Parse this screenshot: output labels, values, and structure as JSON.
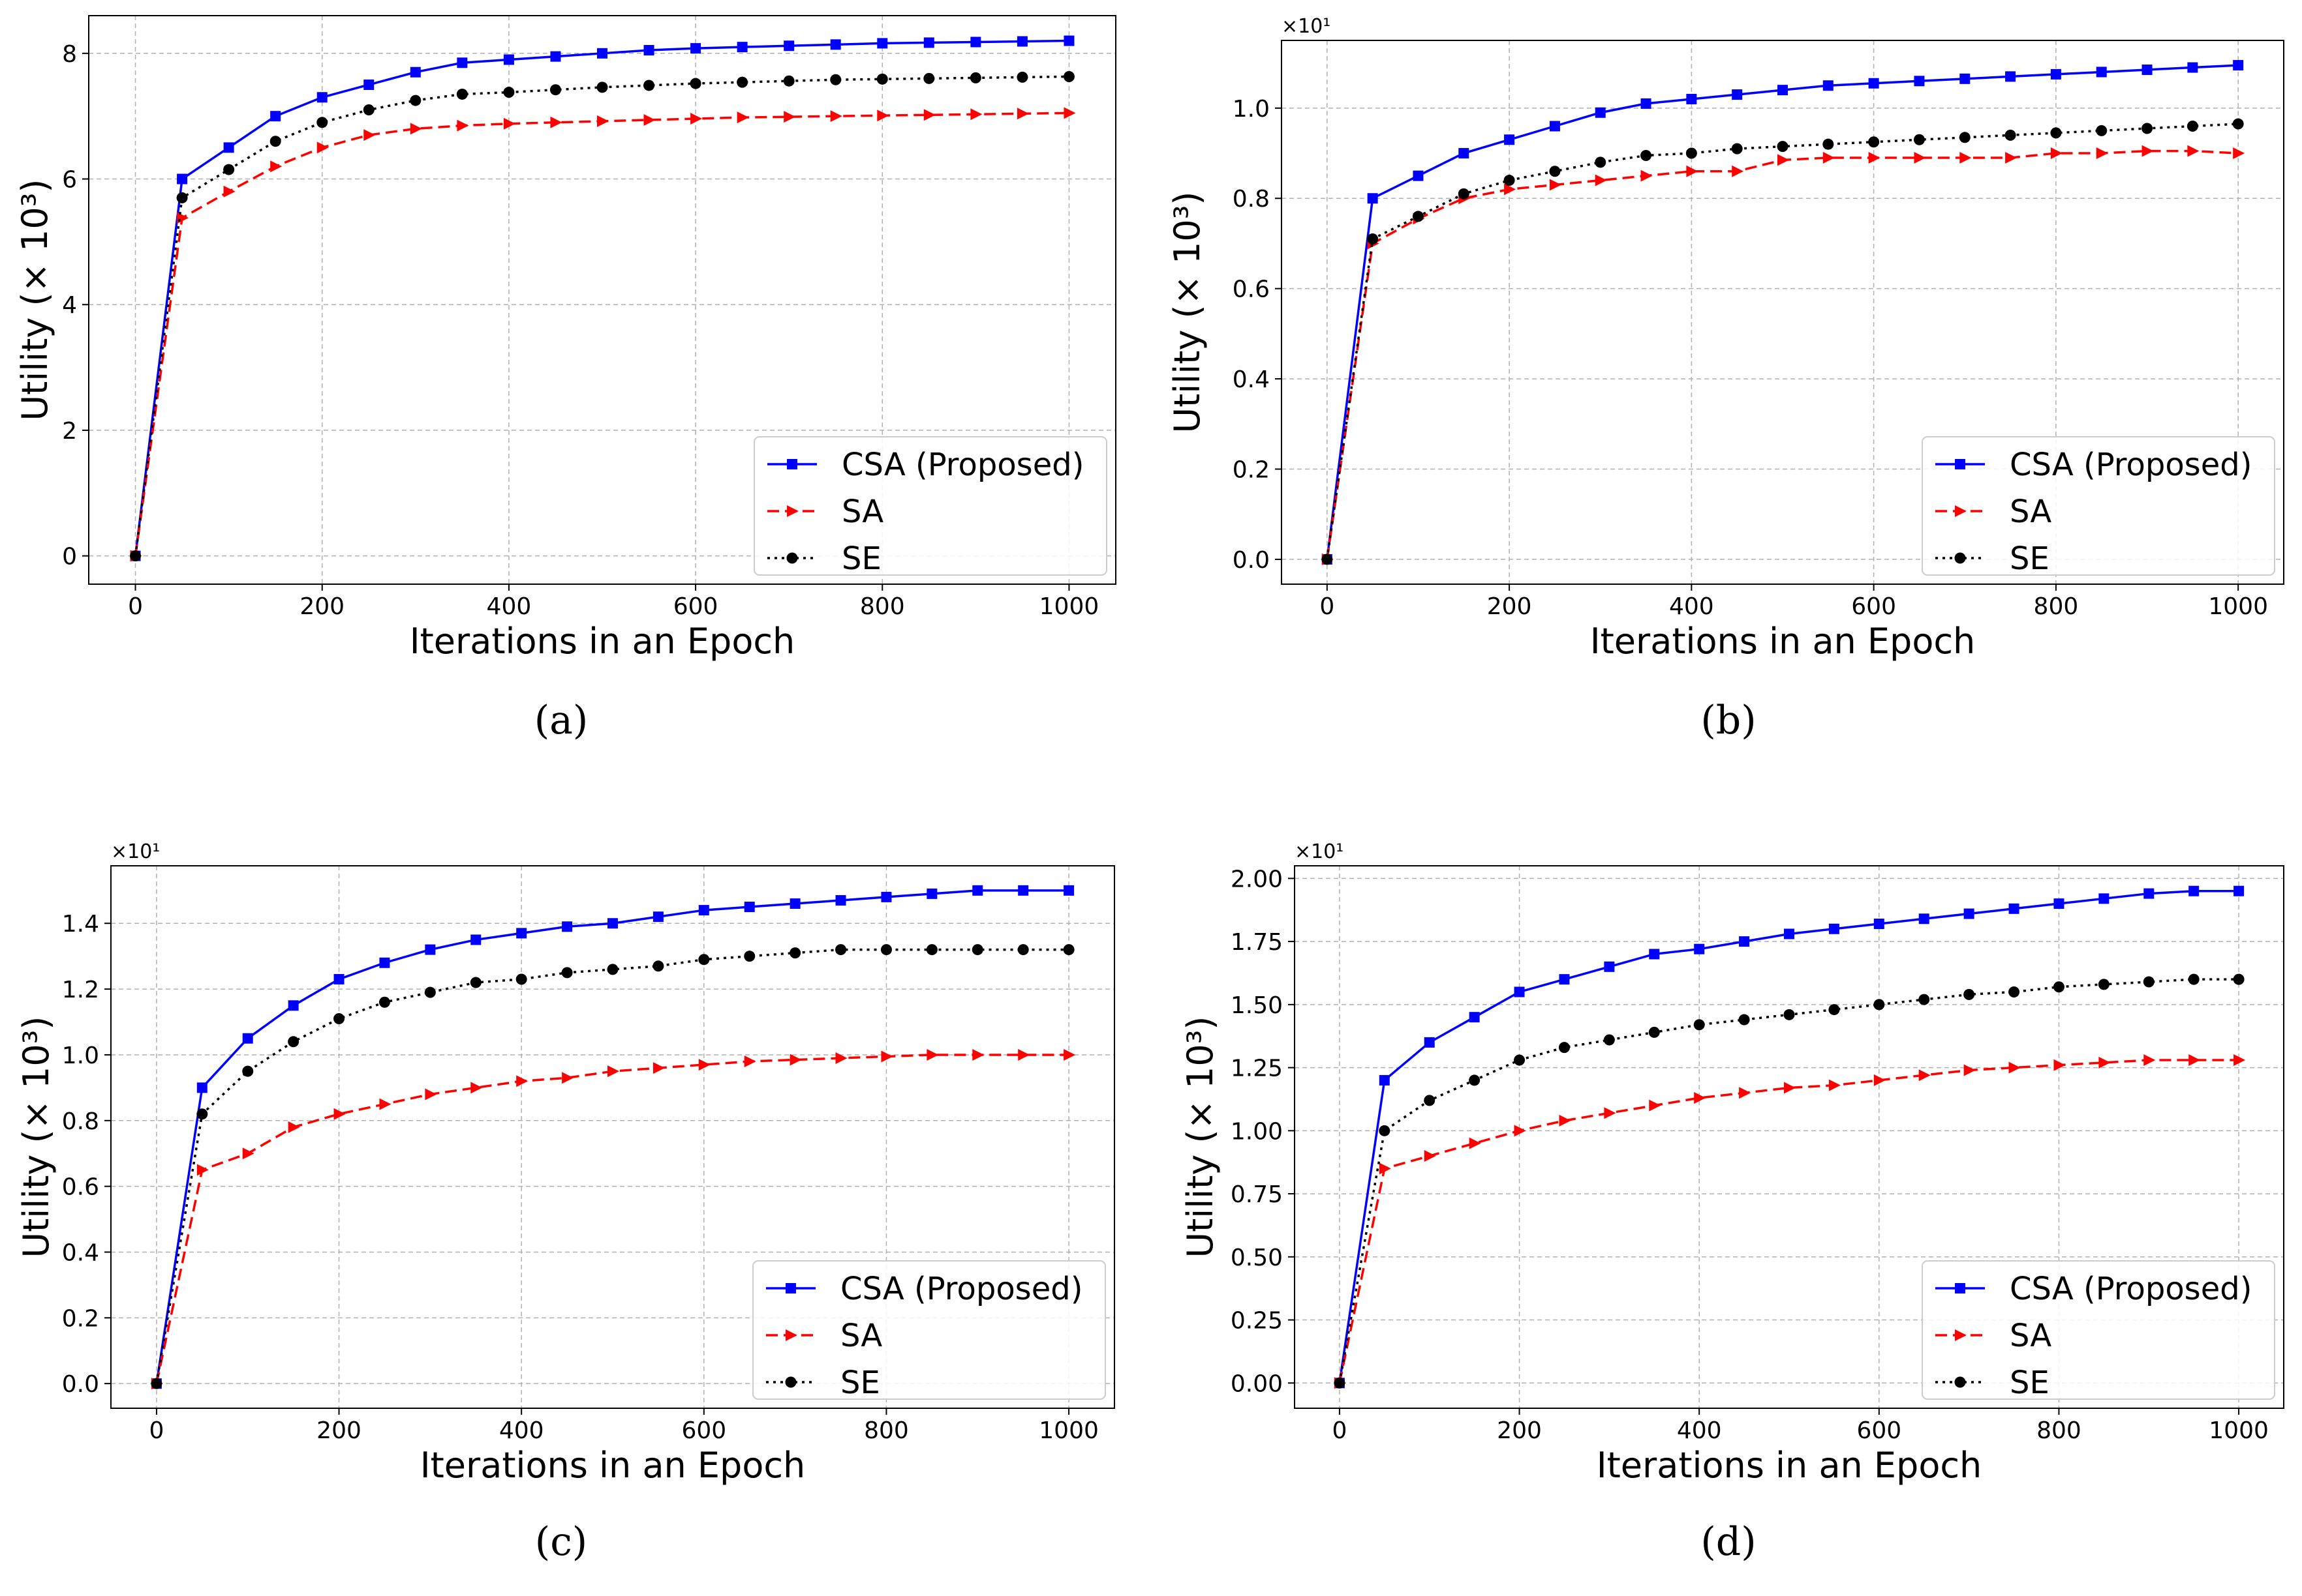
{
  "figure": {
    "captions": [
      "(a)",
      "(b)",
      "(c)",
      "(d)"
    ]
  },
  "colors": {
    "csa": "#0000ff",
    "sa": "#ff0000",
    "se": "#000000",
    "grid": "#b0b0b0"
  },
  "chart_data": [
    {
      "type": "line",
      "xlabel": "Iterations in an Epoch",
      "ylabel": "Utility (× 10³)",
      "offset_text": "",
      "xlim": [
        -50,
        1050
      ],
      "ylim": [
        -0.45,
        8.6
      ],
      "xticks": [
        0,
        200,
        400,
        600,
        800,
        1000
      ],
      "xtick_labels": [
        "0",
        "200",
        "400",
        "600",
        "800",
        "1000"
      ],
      "yticks": [
        0,
        2,
        4,
        6,
        8
      ],
      "ytick_labels": [
        "0",
        "2",
        "4",
        "6",
        "8"
      ],
      "grid": true,
      "legend": "lower right",
      "x": [
        0,
        50,
        100,
        150,
        200,
        250,
        300,
        350,
        400,
        450,
        500,
        550,
        600,
        650,
        700,
        750,
        800,
        850,
        900,
        950,
        1000
      ],
      "series": [
        {
          "name": "CSA (Proposed)",
          "marker": "square",
          "dash": "solid",
          "values": [
            0,
            6.0,
            6.5,
            7.0,
            7.3,
            7.5,
            7.7,
            7.85,
            7.9,
            7.95,
            8.0,
            8.05,
            8.08,
            8.1,
            8.12,
            8.14,
            8.16,
            8.17,
            8.18,
            8.19,
            8.2
          ]
        },
        {
          "name": "SA",
          "marker": "triangle-right",
          "dash": "dashed",
          "values": [
            0,
            5.38,
            5.8,
            6.2,
            6.5,
            6.7,
            6.8,
            6.85,
            6.88,
            6.9,
            6.92,
            6.94,
            6.96,
            6.98,
            6.99,
            7.0,
            7.01,
            7.02,
            7.03,
            7.04,
            7.05
          ]
        },
        {
          "name": "SE",
          "marker": "circle",
          "dash": "dotted",
          "values": [
            0,
            5.7,
            6.15,
            6.6,
            6.9,
            7.1,
            7.25,
            7.35,
            7.38,
            7.42,
            7.46,
            7.49,
            7.52,
            7.54,
            7.56,
            7.58,
            7.59,
            7.6,
            7.61,
            7.62,
            7.63
          ]
        }
      ]
    },
    {
      "type": "line",
      "xlabel": "Iterations in an Epoch",
      "ylabel": "Utility (× 10³)",
      "offset_text": "×10¹",
      "xlim": [
        -50,
        1050
      ],
      "ylim": [
        -0.055,
        1.15
      ],
      "xticks": [
        0,
        200,
        400,
        600,
        800,
        1000
      ],
      "xtick_labels": [
        "0",
        "200",
        "400",
        "600",
        "800",
        "1000"
      ],
      "yticks": [
        0,
        0.2,
        0.4,
        0.6,
        0.8,
        1.0
      ],
      "ytick_labels": [
        "0.0",
        "0.2",
        "0.4",
        "0.6",
        "0.8",
        "1.0"
      ],
      "grid": true,
      "legend": "lower right",
      "x": [
        0,
        50,
        100,
        150,
        200,
        250,
        300,
        350,
        400,
        450,
        500,
        550,
        600,
        650,
        700,
        750,
        800,
        850,
        900,
        950,
        1000
      ],
      "series": [
        {
          "name": "CSA (Proposed)",
          "marker": "square",
          "dash": "solid",
          "values": [
            0,
            0.8,
            0.85,
            0.9,
            0.93,
            0.96,
            0.99,
            1.01,
            1.02,
            1.03,
            1.04,
            1.05,
            1.055,
            1.06,
            1.065,
            1.07,
            1.075,
            1.08,
            1.085,
            1.09,
            1.095
          ]
        },
        {
          "name": "SA",
          "marker": "triangle-right",
          "dash": "dashed",
          "values": [
            0,
            0.7,
            0.755,
            0.8,
            0.82,
            0.83,
            0.84,
            0.85,
            0.86,
            0.86,
            0.885,
            0.89,
            0.89,
            0.89,
            0.89,
            0.89,
            0.9,
            0.9,
            0.905,
            0.905,
            0.9
          ]
        },
        {
          "name": "SE",
          "marker": "circle",
          "dash": "dotted",
          "values": [
            0,
            0.71,
            0.76,
            0.81,
            0.84,
            0.86,
            0.88,
            0.895,
            0.9,
            0.91,
            0.915,
            0.92,
            0.925,
            0.93,
            0.935,
            0.94,
            0.945,
            0.95,
            0.955,
            0.96,
            0.965
          ]
        }
      ]
    },
    {
      "type": "line",
      "xlabel": "Iterations in an Epoch",
      "ylabel": "Utility (× 10³)",
      "offset_text": "×10¹",
      "xlim": [
        -50,
        1050
      ],
      "ylim": [
        -0.075,
        1.575
      ],
      "xticks": [
        0,
        200,
        400,
        600,
        800,
        1000
      ],
      "xtick_labels": [
        "0",
        "200",
        "400",
        "600",
        "800",
        "1000"
      ],
      "yticks": [
        0,
        0.2,
        0.4,
        0.6,
        0.8,
        1.0,
        1.2,
        1.4
      ],
      "ytick_labels": [
        "0.0",
        "0.2",
        "0.4",
        "0.6",
        "0.8",
        "1.0",
        "1.2",
        "1.4"
      ],
      "grid": true,
      "legend": "lower right",
      "x": [
        0,
        50,
        100,
        150,
        200,
        250,
        300,
        350,
        400,
        450,
        500,
        550,
        600,
        650,
        700,
        750,
        800,
        850,
        900,
        950,
        1000
      ],
      "series": [
        {
          "name": "CSA (Proposed)",
          "marker": "square",
          "dash": "solid",
          "values": [
            0,
            0.9,
            1.05,
            1.15,
            1.23,
            1.28,
            1.32,
            1.35,
            1.37,
            1.39,
            1.4,
            1.42,
            1.44,
            1.45,
            1.46,
            1.47,
            1.48,
            1.49,
            1.5,
            1.5,
            1.5
          ]
        },
        {
          "name": "SA",
          "marker": "triangle-right",
          "dash": "dashed",
          "values": [
            0,
            0.65,
            0.7,
            0.78,
            0.82,
            0.85,
            0.88,
            0.9,
            0.92,
            0.93,
            0.95,
            0.96,
            0.97,
            0.98,
            0.985,
            0.99,
            0.995,
            1.0,
            1.0,
            1.0,
            1.0
          ]
        },
        {
          "name": "SE",
          "marker": "circle",
          "dash": "dotted",
          "values": [
            0,
            0.82,
            0.95,
            1.04,
            1.11,
            1.16,
            1.19,
            1.22,
            1.23,
            1.25,
            1.26,
            1.27,
            1.29,
            1.3,
            1.31,
            1.32,
            1.32,
            1.32,
            1.32,
            1.32,
            1.32
          ]
        }
      ]
    },
    {
      "type": "line",
      "xlabel": "Iterations in an Epoch",
      "ylabel": "Utility (× 10³)",
      "offset_text": "×10¹",
      "xlim": [
        -50,
        1050
      ],
      "ylim": [
        -0.1,
        2.05
      ],
      "xticks": [
        0,
        200,
        400,
        600,
        800,
        1000
      ],
      "xtick_labels": [
        "0",
        "200",
        "400",
        "600",
        "800",
        "1000"
      ],
      "yticks": [
        0,
        0.25,
        0.5,
        0.75,
        1.0,
        1.25,
        1.5,
        1.75,
        2.0
      ],
      "ytick_labels": [
        "0.00",
        "0.25",
        "0.50",
        "0.75",
        "1.00",
        "1.25",
        "1.50",
        "1.75",
        "2.00"
      ],
      "grid": true,
      "legend": "lower right",
      "x": [
        0,
        50,
        100,
        150,
        200,
        250,
        300,
        350,
        400,
        450,
        500,
        550,
        600,
        650,
        700,
        750,
        800,
        850,
        900,
        950,
        1000
      ],
      "series": [
        {
          "name": "CSA (Proposed)",
          "marker": "square",
          "dash": "solid",
          "values": [
            0,
            1.2,
            1.35,
            1.45,
            1.55,
            1.6,
            1.65,
            1.7,
            1.72,
            1.75,
            1.78,
            1.8,
            1.82,
            1.84,
            1.86,
            1.88,
            1.9,
            1.92,
            1.94,
            1.95,
            1.95
          ]
        },
        {
          "name": "SA",
          "marker": "triangle-right",
          "dash": "dashed",
          "values": [
            0,
            0.85,
            0.9,
            0.95,
            1.0,
            1.04,
            1.07,
            1.1,
            1.13,
            1.15,
            1.17,
            1.18,
            1.2,
            1.22,
            1.24,
            1.25,
            1.26,
            1.27,
            1.28,
            1.28,
            1.28
          ]
        },
        {
          "name": "SE",
          "marker": "circle",
          "dash": "dotted",
          "values": [
            0,
            1.0,
            1.12,
            1.2,
            1.28,
            1.33,
            1.36,
            1.39,
            1.42,
            1.44,
            1.46,
            1.48,
            1.5,
            1.52,
            1.54,
            1.55,
            1.57,
            1.58,
            1.59,
            1.6,
            1.6
          ]
        }
      ]
    }
  ]
}
